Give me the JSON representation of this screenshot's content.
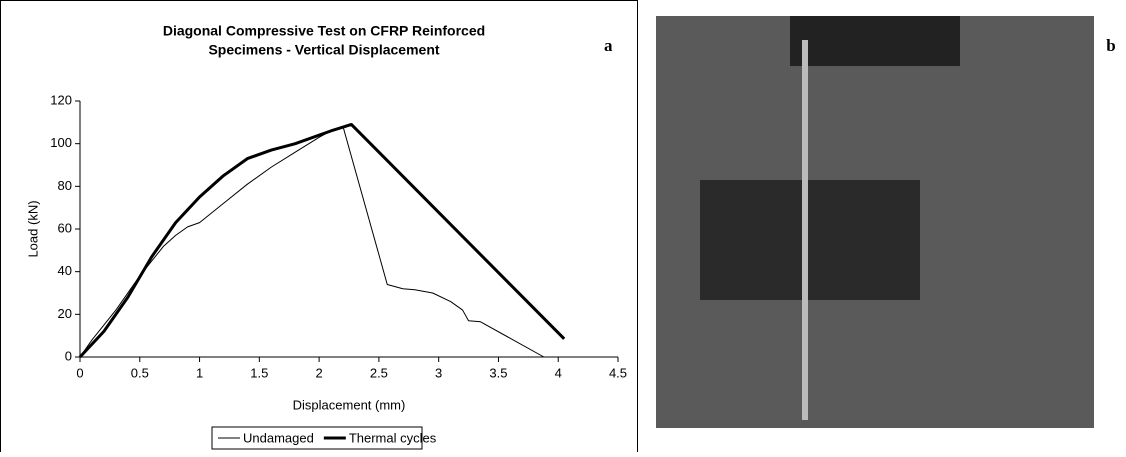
{
  "chart_data": {
    "type": "line",
    "title": "Diagonal Compressive Test on CFRP Reinforced",
    "subtitle": "Specimens - Vertical Displacement",
    "panel_label": "a",
    "x_label": "Displacement (mm)",
    "y_label": "Load  (kN)",
    "xlim": [
      0,
      4.5
    ],
    "xticks": [
      0,
      0.5,
      1,
      1.5,
      2,
      2.5,
      3,
      3.5,
      4,
      4.5
    ],
    "ylim": [
      0,
      120
    ],
    "yticks": [
      0,
      20,
      40,
      60,
      80,
      100,
      120
    ],
    "legend": "bottom",
    "series": [
      {
        "name": "Undamaged",
        "color": "#000000",
        "width": 1,
        "x": [
          0,
          0.1,
          0.3,
          0.5,
          0.7,
          0.8,
          0.9,
          1.0,
          1.2,
          1.4,
          1.6,
          1.8,
          2.0,
          2.1,
          2.2,
          2.57,
          2.7,
          2.8,
          2.95,
          3.1,
          3.2,
          3.25,
          3.35,
          3.88
        ],
        "values": [
          0,
          8,
          22,
          38,
          52,
          57,
          61,
          63,
          72,
          81,
          89,
          96,
          103,
          106,
          108,
          34,
          32,
          31.5,
          30,
          26,
          22,
          17,
          16.5,
          0
        ]
      },
      {
        "name": "Thermal cycles",
        "color": "#000000",
        "width": 3,
        "x": [
          0,
          0.2,
          0.4,
          0.6,
          0.8,
          1.0,
          1.2,
          1.4,
          1.6,
          1.8,
          2.0,
          2.1,
          2.27,
          4.05
        ],
        "values": [
          0,
          12,
          28,
          47,
          63,
          75,
          85,
          93,
          97,
          100,
          104,
          106,
          109,
          8.5
        ]
      }
    ]
  },
  "photo": {
    "label": "b"
  }
}
